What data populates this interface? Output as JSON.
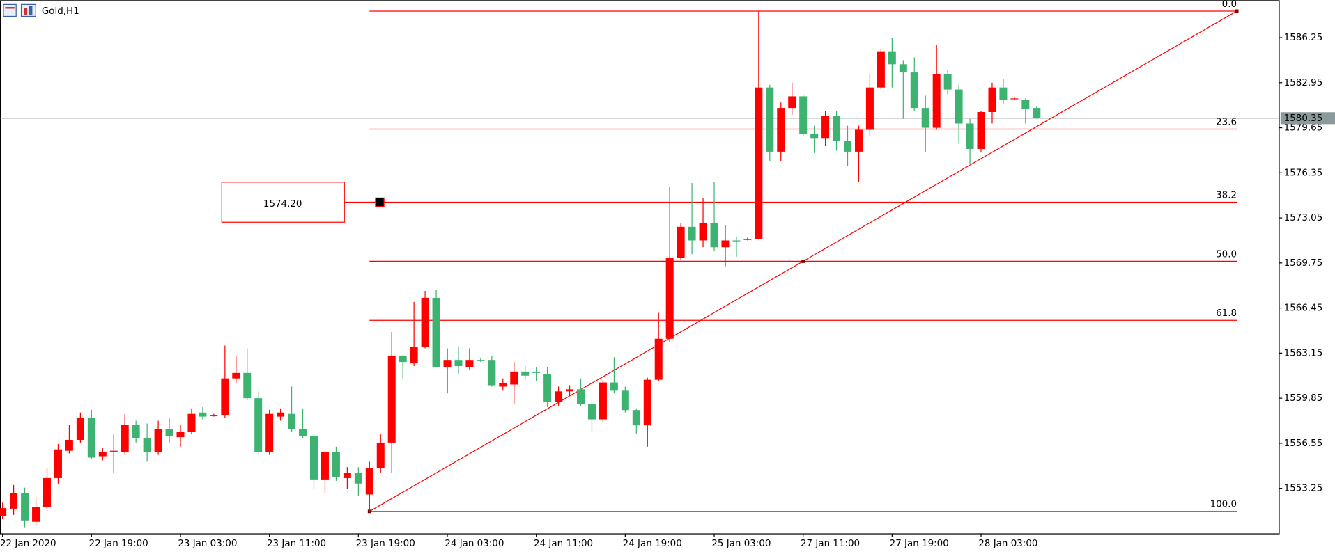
{
  "chart_data": {
    "type": "candlestick",
    "title": "Gold,H1",
    "categories": [
      "22 Jan 2020",
      null,
      null,
      null,
      null,
      null,
      null,
      null,
      "22 Jan 19:00",
      null,
      null,
      null,
      null,
      null,
      null,
      null,
      "23 Jan 03:00",
      null,
      null,
      null,
      null,
      null,
      null,
      null,
      "23 Jan 11:00",
      null,
      null,
      null,
      null,
      null,
      null,
      null,
      "23 Jan 19:00",
      null,
      null,
      null,
      null,
      null,
      null,
      null,
      "24 Jan 03:00",
      null,
      null,
      null,
      null,
      null,
      null,
      null,
      "24 Jan 11:00",
      null,
      null,
      null,
      null,
      null,
      null,
      null,
      "24 Jan 19:00",
      null,
      null,
      null,
      null,
      null,
      null,
      null,
      "25 Jan 03:00",
      null,
      null,
      null,
      null,
      null,
      null,
      null,
      "27 Jan 11:00",
      null,
      null,
      null,
      null,
      null,
      null,
      null,
      "27 Jan 19:00",
      null,
      null,
      null,
      null,
      null,
      null,
      null,
      "28 Jan 03:00",
      null,
      null,
      null,
      null,
      null
    ],
    "open": [
      1551.2,
      1551.76,
      1552.9,
      1550.8,
      1551.9,
      1554.0,
      1556.0,
      1556.8,
      1558.4,
      1555.6,
      1556.0,
      1555.9,
      1557.9,
      1556.9,
      1555.9,
      1557.6,
      1557.0,
      1557.4,
      1558.8,
      1558.6,
      1558.6,
      1561.3,
      1561.7,
      1559.85,
      1555.9,
      1558.5,
      1558.7,
      1557.6,
      1557.1,
      1553.9,
      1555.9,
      1554.0,
      1554.4,
      1552.8,
      1554.75,
      1556.6,
      1562.97,
      1562.4,
      1563.6,
      1567.2,
      1562.1,
      1562.65,
      1562.1,
      1562.65,
      1562.65,
      1560.7,
      1560.85,
      1561.8,
      1561.8,
      1561.6,
      1559.55,
      1560.35,
      1560.5,
      1559.4,
      1558.3,
      1561.0,
      1560.4,
      1558.98,
      1557.86,
      1561.2,
      1564.2,
      1570.1,
      1572.4,
      1571.4,
      1572.7,
      1570.9,
      1571.4,
      1571.5,
      1571.5,
      1582.6,
      1577.9,
      1581.1,
      1581.95,
      1579.2,
      1578.9,
      1580.5,
      1578.7,
      1577.9,
      1579.5,
      1582.6,
      1585.25,
      1584.3,
      1583.7,
      1581.1,
      1579.65,
      1583.6,
      1582.45,
      1579.96,
      1578.1,
      1580.8,
      1582.6,
      1581.8,
      1581.7,
      1581.1
    ],
    "high": [
      1552.2,
      1553.5,
      1553.3,
      1552.6,
      1554.7,
      1556.5,
      1557.9,
      1558.8,
      1559.0,
      1556.2,
      1557.2,
      1558.7,
      1558.2,
      1558.0,
      1558.2,
      1558.4,
      1557.9,
      1559.1,
      1559.2,
      1558.7,
      1563.7,
      1562.97,
      1563.5,
      1560.35,
      1559.0,
      1559.1,
      1560.7,
      1559.1,
      1557.2,
      1556.0,
      1556.3,
      1554.8,
      1554.8,
      1555.2,
      1557.2,
      1564.7,
      1563.0,
      1566.9,
      1567.7,
      1567.8,
      1563.5,
      1563.6,
      1563.5,
      1562.8,
      1562.97,
      1561.3,
      1562.5,
      1562.2,
      1562.1,
      1562.1,
      1560.7,
      1560.8,
      1561.3,
      1559.7,
      1561.2,
      1562.84,
      1560.7,
      1559.1,
      1561.35,
      1566.1,
      1575.3,
      1572.7,
      1575.6,
      1574.5,
      1575.7,
      1572.5,
      1571.7,
      1571.6,
      1588.19,
      1582.8,
      1581.5,
      1582.95,
      1582.1,
      1579.8,
      1580.9,
      1580.9,
      1579.8,
      1579.8,
      1583.6,
      1585.4,
      1586.2,
      1584.6,
      1584.8,
      1582.0,
      1585.7,
      1583.9,
      1582.8,
      1580.3,
      1580.9,
      1582.95,
      1583.2,
      1581.9,
      1581.8,
      1581.2
    ],
    "low": [
      1551.0,
      1551.3,
      1550.4,
      1550.5,
      1551.6,
      1553.6,
      1555.8,
      1556.6,
      1555.4,
      1555.3,
      1554.4,
      1555.7,
      1556.6,
      1555.2,
      1555.7,
      1556.6,
      1556.3,
      1557.2,
      1558.3,
      1558.5,
      1558.4,
      1560.97,
      1559.7,
      1555.7,
      1555.7,
      1558.2,
      1557.4,
      1556.9,
      1553.2,
      1552.9,
      1553.8,
      1553.2,
      1552.7,
      1551.56,
      1554.4,
      1554.4,
      1561.3,
      1562.2,
      1563.5,
      1562.1,
      1560.2,
      1561.6,
      1561.9,
      1562.5,
      1560.7,
      1560.4,
      1559.4,
      1561.2,
      1561.1,
      1559.2,
      1559.3,
      1560.0,
      1559.3,
      1557.4,
      1558.05,
      1560.2,
      1558.8,
      1557.2,
      1556.3,
      1561.1,
      1563.96,
      1570.0,
      1570.4,
      1570.9,
      1570.6,
      1569.5,
      1570.2,
      1571.4,
      1571.5,
      1577.2,
      1577.2,
      1580.6,
      1579.0,
      1577.8,
      1578.3,
      1577.97,
      1576.85,
      1575.7,
      1579.0,
      1582.45,
      1582.6,
      1580.3,
      1580.9,
      1577.9,
      1579.5,
      1582.1,
      1578.5,
      1577.0,
      1577.9,
      1579.96,
      1581.4,
      1581.7,
      1579.96,
      1580.3
    ],
    "close": [
      1551.8,
      1552.9,
      1550.9,
      1551.9,
      1554.0,
      1556.1,
      1556.8,
      1558.4,
      1555.5,
      1555.9,
      1556.0,
      1557.9,
      1556.9,
      1555.9,
      1557.6,
      1557.1,
      1557.4,
      1558.7,
      1558.5,
      1558.6,
      1561.3,
      1561.7,
      1559.85,
      1555.9,
      1558.7,
      1558.8,
      1557.6,
      1557.1,
      1553.9,
      1555.9,
      1554.1,
      1554.4,
      1553.6,
      1554.75,
      1556.6,
      1562.97,
      1562.5,
      1563.6,
      1567.2,
      1562.1,
      1562.65,
      1562.2,
      1562.65,
      1562.6,
      1560.8,
      1560.97,
      1561.8,
      1561.5,
      1561.7,
      1559.55,
      1560.35,
      1560.5,
      1559.4,
      1558.3,
      1561.0,
      1560.4,
      1558.98,
      1557.86,
      1561.2,
      1564.2,
      1570.1,
      1572.4,
      1571.4,
      1572.7,
      1570.9,
      1571.4,
      1571.35,
      1571.5,
      1582.6,
      1577.9,
      1581.1,
      1581.95,
      1579.2,
      1578.9,
      1580.5,
      1578.7,
      1577.9,
      1579.5,
      1582.6,
      1585.25,
      1584.3,
      1583.7,
      1581.1,
      1579.65,
      1583.6,
      1582.45,
      1579.96,
      1578.1,
      1580.8,
      1582.6,
      1581.7,
      1581.8,
      1581.0,
      1580.35
    ],
    "up_color": "#ff0000",
    "down_color": "#3cb371",
    "ylim": [
      1549.95,
      1588.99
    ],
    "yticks": [
      1553.25,
      1556.55,
      1559.85,
      1563.15,
      1566.45,
      1569.75,
      1573.05,
      1576.35,
      1579.65,
      1582.95,
      1586.25
    ],
    "last_price": {
      "value": 1580.35,
      "label": "1580.35"
    },
    "fibonacci": {
      "color": "#ff0000",
      "start": 33,
      "end": 111,
      "levels": [
        {
          "label": "0.0",
          "price": 1588.19
        },
        {
          "label": "23.6",
          "price": 1579.55
        },
        {
          "label": "38.2",
          "price": 1574.2
        },
        {
          "label": "50.0",
          "price": 1569.875
        },
        {
          "label": "61.8",
          "price": 1565.55
        },
        {
          "label": "100.0",
          "price": 1551.56
        }
      ]
    },
    "highlight": {
      "value": 1574.2,
      "label": "1574.20"
    }
  }
}
